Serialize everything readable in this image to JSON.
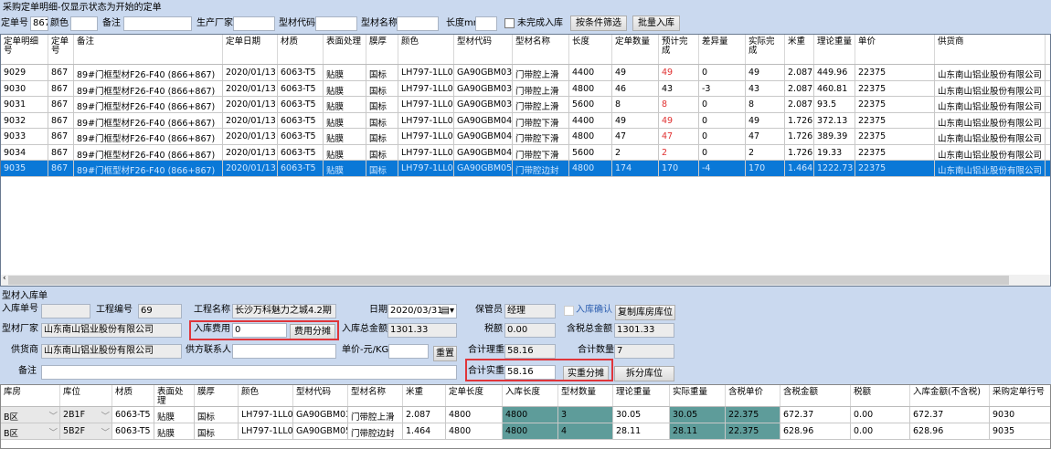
{
  "title": "采购定单明细-仅显示状态为开始的定单",
  "filter": {
    "order_no_label": "定单号",
    "order_no": "867",
    "color_label": "颜色",
    "color": "",
    "remark_label": "备注",
    "remark": "",
    "maker_label": "生产厂家",
    "maker": "",
    "code_label": "型材代码",
    "code": "",
    "name_label": "型材名称",
    "name": "",
    "length_label": "长度mm",
    "length": "",
    "unfinished_label": "未完成入库",
    "filter_button": "按条件筛选",
    "batch_button": "批量入库"
  },
  "order_grid": {
    "columns": [
      "定单明细号",
      "定单号",
      "备注",
      "定单日期",
      "材质",
      "表面处理",
      "膜厚",
      "颜色",
      "型材代码",
      "型材名称",
      "长度",
      "定单数量",
      "预计完成",
      "差异量",
      "实际完成",
      "米重",
      "理论重量",
      "单价",
      "供货商"
    ],
    "rows": [
      [
        "9029",
        "867",
        "89#门框型材F26-F40 (866+867)",
        "2020/01/13",
        "6063-T5",
        "贴膜",
        "国标",
        "LH797-1LL0",
        "GA90GBM03",
        "门带腔上滑",
        "4400",
        "49",
        "49",
        "0",
        "49",
        "2.087",
        "449.96",
        "22375",
        "山东南山铝业股份有限公司"
      ],
      [
        "9030",
        "867",
        "89#门框型材F26-F40 (866+867)",
        "2020/01/13",
        "6063-T5",
        "贴膜",
        "国标",
        "LH797-1LL0",
        "GA90GBM03",
        "门带腔上滑",
        "4800",
        "46",
        "43",
        "-3",
        "43",
        "2.087",
        "460.81",
        "22375",
        "山东南山铝业股份有限公司"
      ],
      [
        "9031",
        "867",
        "89#门框型材F26-F40 (866+867)",
        "2020/01/13",
        "6063-T5",
        "贴膜",
        "国标",
        "LH797-1LL0",
        "GA90GBM03",
        "门带腔上滑",
        "5600",
        "8",
        "8",
        "0",
        "8",
        "2.087",
        "93.5",
        "22375",
        "山东南山铝业股份有限公司"
      ],
      [
        "9032",
        "867",
        "89#门框型材F26-F40 (866+867)",
        "2020/01/13",
        "6063-T5",
        "贴膜",
        "国标",
        "LH797-1LL0",
        "GA90GBM04",
        "门带腔下滑",
        "4400",
        "49",
        "49",
        "0",
        "49",
        "1.726",
        "372.13",
        "22375",
        "山东南山铝业股份有限公司"
      ],
      [
        "9033",
        "867",
        "89#门框型材F26-F40 (866+867)",
        "2020/01/13",
        "6063-T5",
        "贴膜",
        "国标",
        "LH797-1LL0",
        "GA90GBM04",
        "门带腔下滑",
        "4800",
        "47",
        "47",
        "0",
        "47",
        "1.726",
        "389.39",
        "22375",
        "山东南山铝业股份有限公司"
      ],
      [
        "9034",
        "867",
        "89#门框型材F26-F40 (866+867)",
        "2020/01/13",
        "6063-T5",
        "贴膜",
        "国标",
        "LH797-1LL0",
        "GA90GBM04",
        "门带腔下滑",
        "5600",
        "2",
        "2",
        "0",
        "2",
        "1.726",
        "19.33",
        "22375",
        "山东南山铝业股份有限公司"
      ],
      [
        "9035",
        "867",
        "89#门框型材F26-F40 (866+867)",
        "2020/01/13",
        "6063-T5",
        "贴膜",
        "国标",
        "LH797-1LL0",
        "GA90GBM05",
        "门带腔边封",
        "4800",
        "174",
        "170",
        "-4",
        "170",
        "1.464",
        "1222.73",
        "22375",
        "山东南山铝业股份有限公司"
      ]
    ],
    "red_rows": [
      0,
      2,
      3,
      4,
      5
    ],
    "selected_row": 6,
    "selection_color": "#0a78d7"
  },
  "receipt": {
    "section_title": "型材入库单",
    "receipt_no_label": "入库单号",
    "receipt_no": "",
    "project_no_label": "工程编号",
    "project_no": "69",
    "project_name_label": "工程名称",
    "project_name": "长沙万科魅力之城4.2期",
    "date_label": "日期",
    "date": "2020/03/31",
    "keeper_label": "保管员",
    "keeper": "经理",
    "confirm_label": "入库确认",
    "copy_button": "复制库房库位",
    "maker_label": "型材厂家",
    "maker": "山东南山铝业股份有限公司",
    "fee_label": "入库费用",
    "fee": "0",
    "fee_button": "费用分摊",
    "total_label": "入库总金额",
    "total": "1301.33",
    "tax_label": "税额",
    "tax": "0.00",
    "tax_total_label": "含税总金额",
    "tax_total": "1301.33",
    "supplier_label": "供货商",
    "supplier": "山东南山铝业股份有限公司",
    "contact_label": "供方联系人",
    "contact": "",
    "unit_price_label": "单价-元/KG",
    "unit_price": "",
    "reset_button": "重置",
    "theory_weight_label": "合计理重",
    "theory_weight": "58.16",
    "count_label": "合计数量",
    "count": "7",
    "remark_label": "备注",
    "remark": "",
    "actual_weight_label": "合计实重",
    "actual_weight": "58.16",
    "actual_button": "实重分摊",
    "split_button": "拆分库位",
    "highlight_color": "#e0353a"
  },
  "receipt_grid": {
    "columns": [
      "库房",
      "库位",
      "材质",
      "表面处理",
      "膜厚",
      "颜色",
      "型材代码",
      "型材名称",
      "米重",
      "定单长度",
      "入库长度",
      "型材数量",
      "理论重量",
      "实际重量",
      "含税单价",
      "含税金额",
      "税额",
      "入库金额(不含税)",
      "采购定单行号"
    ],
    "rows": [
      [
        "B区",
        "2B1F",
        "6063-T5",
        "贴膜",
        "国标",
        "LH797-1LL0",
        "GA90GBM03",
        "门带腔上滑",
        "2.087",
        "4800",
        "4800",
        "3",
        "30.05",
        "30.05",
        "22.375",
        "672.37",
        "0.00",
        "672.37",
        "9030"
      ],
      [
        "B区",
        "5B2F",
        "6063-T5",
        "贴膜",
        "国标",
        "LH797-1LL0",
        "GA90GBM05",
        "门带腔边封",
        "1.464",
        "4800",
        "4800",
        "4",
        "28.11",
        "28.11",
        "22.375",
        "628.96",
        "0.00",
        "628.96",
        "9035"
      ]
    ],
    "editable_color": "#5e9c9a"
  }
}
